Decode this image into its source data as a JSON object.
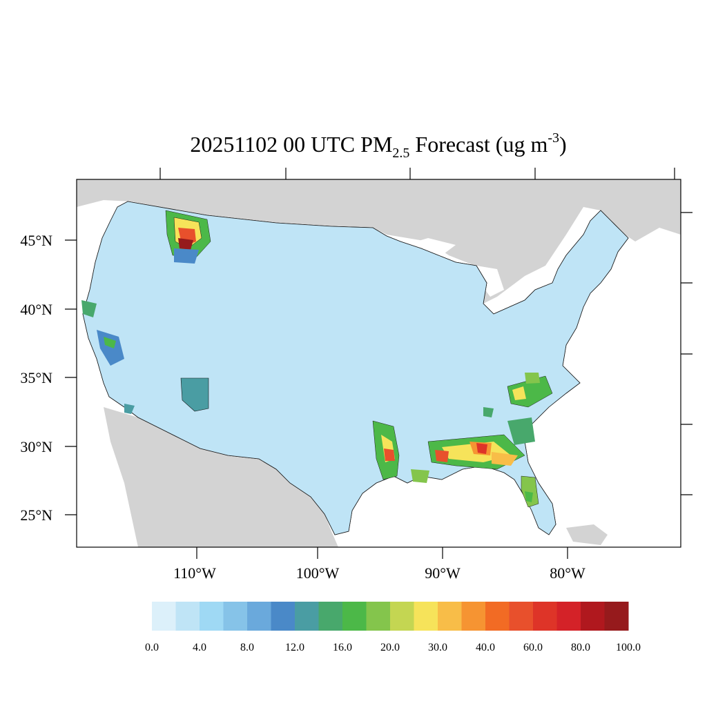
{
  "title": {
    "main": "20251102 00 UTC PM",
    "subscript": "2.5",
    "tail": " Forecast (ug m",
    "superscript": "-3",
    "close": ")"
  },
  "map": {
    "projection": "lambert-conformal",
    "lat_labels": [
      {
        "text": "45°N",
        "lat": 45
      },
      {
        "text": "40°N",
        "lat": 40
      },
      {
        "text": "35°N",
        "lat": 35
      },
      {
        "text": "30°N",
        "lat": 30
      },
      {
        "text": "25°N",
        "lat": 25
      }
    ],
    "lon_labels": [
      {
        "text": "110°W",
        "lon": -110
      },
      {
        "text": "100°W",
        "lon": -100
      },
      {
        "text": "90°W",
        "lon": -90
      },
      {
        "text": "80°W",
        "lon": -80
      }
    ],
    "colors": {
      "land_background": "#d3d3d3",
      "water": "#ffffff",
      "county_border": "#1a1a1a"
    },
    "hotspots": [
      {
        "region": "western-montana",
        "level": "high"
      },
      {
        "region": "northern-california",
        "level": "moderate"
      },
      {
        "region": "central-arizona",
        "level": "moderate"
      },
      {
        "region": "east-texas-louisiana",
        "level": "high"
      },
      {
        "region": "mississippi-alabama",
        "level": "high"
      },
      {
        "region": "georgia-carolinas",
        "level": "moderate"
      },
      {
        "region": "florida",
        "level": "moderate"
      }
    ]
  },
  "colorbar": {
    "colors": [
      "#dcf0fa",
      "#bfe4f6",
      "#9fd9f4",
      "#86c3e8",
      "#6aa9dc",
      "#4a89c8",
      "#4a9da3",
      "#48a86c",
      "#4cb848",
      "#84c54c",
      "#c4d652",
      "#f6e35a",
      "#f8bd48",
      "#f69432",
      "#f26b24",
      "#e8502c",
      "#de3428",
      "#d42228",
      "#b0181e",
      "#961a1c"
    ],
    "labels": [
      "0.0",
      "4.0",
      "8.0",
      "12.0",
      "16.0",
      "20.0",
      "30.0",
      "40.0",
      "60.0",
      "80.0",
      "100.0"
    ]
  }
}
